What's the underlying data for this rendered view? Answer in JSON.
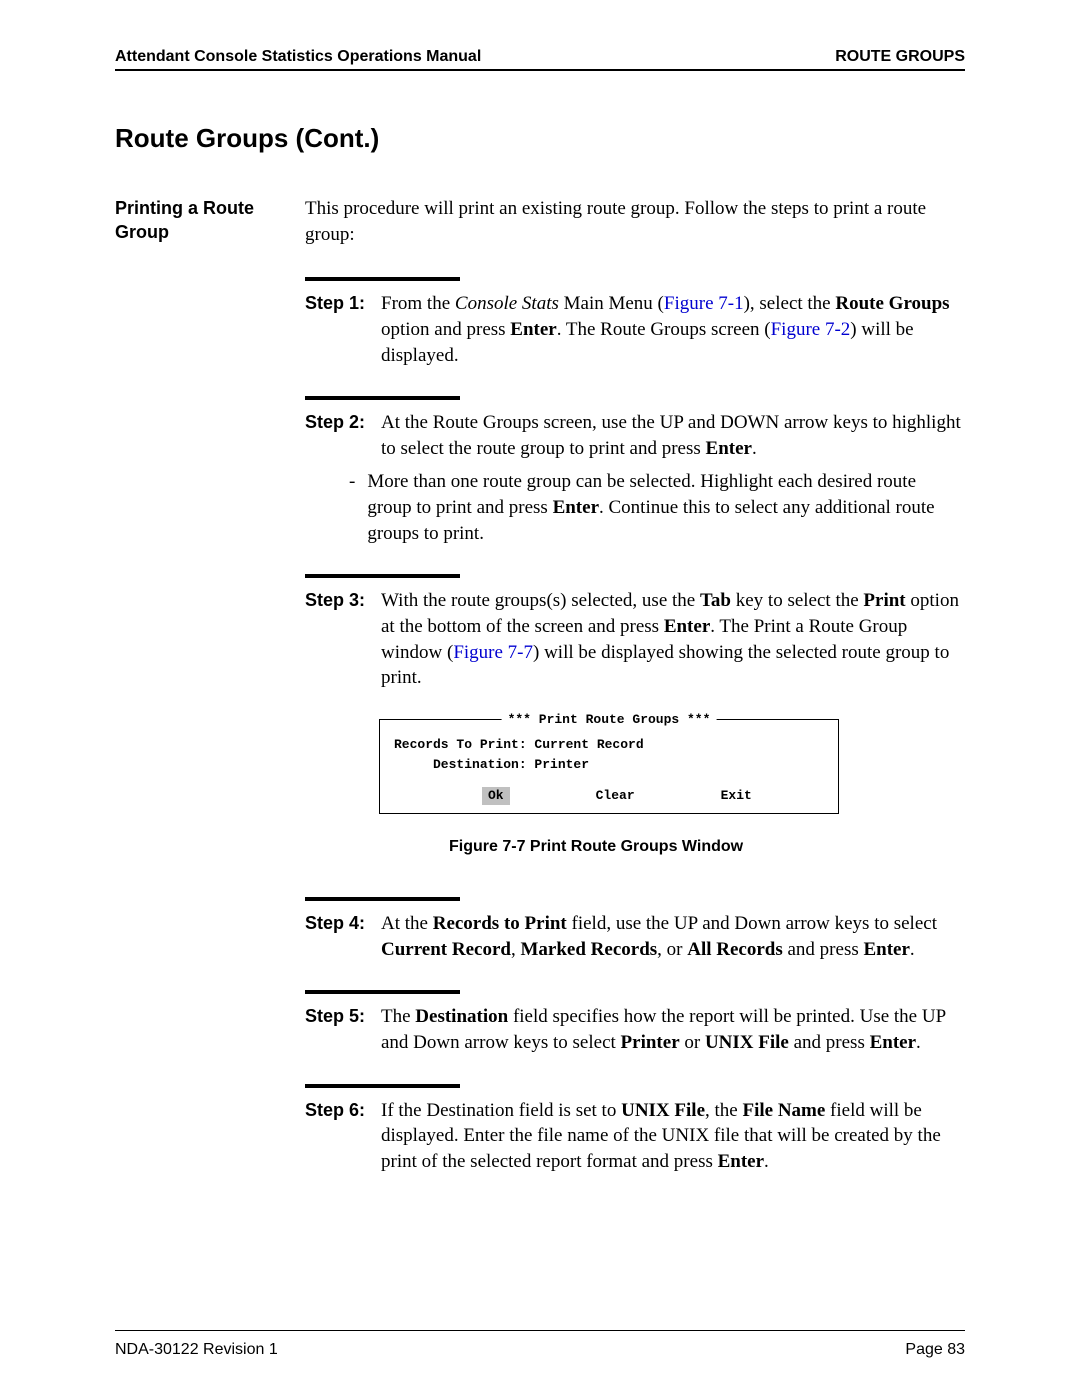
{
  "header": {
    "left": "Attendant Console Statistics Operations Manual",
    "right": "ROUTE GROUPS"
  },
  "section_title": "Route Groups (Cont.)",
  "subsection_title": "Printing a Route Group",
  "intro": "This procedure will print an existing route group. Follow the steps to print a route group:",
  "steps": {
    "s1": {
      "label": "Step 1:",
      "p1a": "From the ",
      "p1_italic": "Console Stats",
      "p1b": " Main Menu (",
      "p1_link1": "Figure 7-1",
      "p1c": "), select the ",
      "p1_bold1": "Route Groups",
      "p1d": " option and press ",
      "p1_bold2": "Enter",
      "p1e": ". The Route Groups screen (",
      "p1_link2": "Figure 7-2",
      "p1f": ") will be displayed."
    },
    "s2": {
      "label": "Step 2:",
      "p1a": "At the Route Groups screen, use the UP and DOWN arrow keys to highlight to select the route group to print and press ",
      "p1_bold1": "Enter",
      "p1b": ".",
      "bullet_a": "More than one route group can be selected. Highlight each desired route group to print and press ",
      "bullet_bold": "Enter",
      "bullet_b": ". Continue this to select any additional route groups to print."
    },
    "s3": {
      "label": "Step 3:",
      "p1a": "With the route groups(s) selected, use the ",
      "p1_bold1": "Tab",
      "p1b": " key to select the ",
      "p1_bold2": "Print",
      "p1c": " option at the bottom of the screen and press ",
      "p1_bold3": "Enter",
      "p1d": ". The Print a Route Group window (",
      "p1_link1": "Figure 7-7",
      "p1e": ") will be displayed showing the selected route group to print."
    },
    "s4": {
      "label": "Step 4:",
      "p1a": "At the ",
      "p1_bold1": "Records to Print",
      "p1b": " field, use the UP and Down arrow keys to select ",
      "p1_bold2": "Current Record",
      "p1c": ", ",
      "p1_bold3": "Marked Records",
      "p1d": ", or ",
      "p1_bold4": "All Records",
      "p1e": " and press ",
      "p1_bold5": "Enter",
      "p1f": "."
    },
    "s5": {
      "label": "Step 5:",
      "p1a": "The ",
      "p1_bold1": "Destination",
      "p1b": " field specifies how the report will be printed. Use the UP and Down arrow keys to select ",
      "p1_bold2": "Printer",
      "p1c": " or ",
      "p1_bold3": "UNIX File",
      "p1d": " and press ",
      "p1_bold4": "Enter",
      "p1e": "."
    },
    "s6": {
      "label": "Step 6:",
      "p1a": "If the Destination field is set to ",
      "p1_bold1": "UNIX File",
      "p1b": ", the ",
      "p1_bold2": "File Name",
      "p1c": " field will be displayed. Enter the file name of the UNIX file that will be created by the print of the selected report format and press ",
      "p1_bold3": "Enter",
      "p1d": "."
    }
  },
  "dialog": {
    "title": "*** Print Route Groups ***",
    "line1": "Records To Print: Current Record",
    "line2": "     Destination: Printer",
    "btn_ok": "Ok",
    "btn_clear": "Clear",
    "btn_exit": "Exit"
  },
  "figure_caption": "Figure 7-7   Print Route Groups Window",
  "footer": {
    "left": "NDA-30122   Revision 1",
    "right": "Page 83"
  }
}
